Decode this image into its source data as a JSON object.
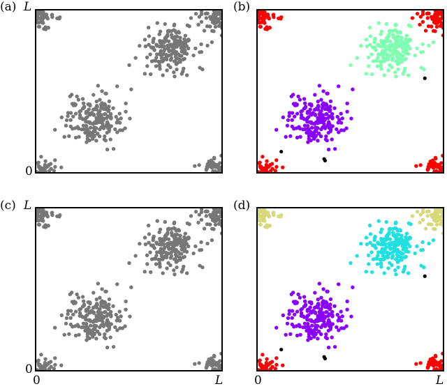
{
  "figure": {
    "panels": [
      {
        "id": "a",
        "label": "(a)"
      },
      {
        "id": "b",
        "label": "(b)"
      },
      {
        "id": "c",
        "label": "(c)"
      },
      {
        "id": "d",
        "label": "(d)"
      }
    ],
    "axis": {
      "max_label": "L",
      "zero_label": "0"
    }
  },
  "chart_data": [
    {
      "type": "scatter",
      "panel": "a",
      "xlim": [
        0,
        1
      ],
      "ylim": [
        0,
        1
      ],
      "xlabel": "",
      "ylabel": "",
      "periodic_boundaries": true,
      "grid": false,
      "clusters": [
        {
          "center": [
            0.31,
            0.33
          ],
          "spread": 0.075,
          "count": 200,
          "color": "#777777"
        },
        {
          "center": [
            0.72,
            0.76
          ],
          "spread": 0.07,
          "count": 200,
          "color": "#777777"
        },
        {
          "center": [
            0.99,
            0.99
          ],
          "spread": 0.055,
          "count": 200,
          "color": "#777777"
        }
      ],
      "outliers": []
    },
    {
      "type": "scatter",
      "panel": "b",
      "xlim": [
        0,
        1
      ],
      "ylim": [
        0,
        1
      ],
      "xlabel": "",
      "ylabel": "",
      "periodic_boundaries": true,
      "grid": false,
      "clusters": [
        {
          "center": [
            0.31,
            0.33
          ],
          "spread": 0.075,
          "count": 200,
          "color": "#8a00ff"
        },
        {
          "center": [
            0.72,
            0.76
          ],
          "spread": 0.07,
          "count": 200,
          "color": "#7fffb0"
        },
        {
          "center": [
            0.99,
            0.99
          ],
          "spread": 0.055,
          "count": 200,
          "color": "#ff0000"
        }
      ],
      "outliers": [
        {
          "x": 0.9,
          "y": 0.58,
          "color": "#000000"
        },
        {
          "x": 0.13,
          "y": 0.13,
          "color": "#000000"
        },
        {
          "x": 0.36,
          "y": 0.085,
          "color": "#000000"
        },
        {
          "x": 0.365,
          "y": 0.075,
          "color": "#000000"
        }
      ]
    },
    {
      "type": "scatter",
      "panel": "c",
      "xlim": [
        0,
        1
      ],
      "ylim": [
        0,
        1
      ],
      "xlabel": "",
      "ylabel": "",
      "periodic_boundaries": true,
      "grid": false,
      "clusters": [
        {
          "center": [
            0.31,
            0.33
          ],
          "spread": 0.075,
          "count": 200,
          "color": "#777777"
        },
        {
          "center": [
            0.72,
            0.76
          ],
          "spread": 0.07,
          "count": 200,
          "color": "#777777"
        },
        {
          "center": [
            0.99,
            0.99
          ],
          "spread": 0.055,
          "count": 200,
          "color": "#777777"
        }
      ],
      "outliers": []
    },
    {
      "type": "scatter",
      "panel": "d",
      "xlim": [
        0,
        1
      ],
      "ylim": [
        0,
        1
      ],
      "xlabel": "",
      "ylabel": "",
      "periodic_boundaries": true,
      "grid": false,
      "clusters": [
        {
          "center": [
            0.31,
            0.33
          ],
          "spread": 0.075,
          "count": 200,
          "color": "#8a00ff"
        },
        {
          "center": [
            0.72,
            0.76
          ],
          "spread": 0.07,
          "count": 200,
          "color": "#22e0e0"
        },
        {
          "center": [
            0.99,
            0.99
          ],
          "spread": 0.055,
          "count": 200,
          "color": "#d6d97a",
          "bottom_right_color": "#ff0000"
        }
      ],
      "outliers": [
        {
          "x": 0.9,
          "y": 0.58,
          "color": "#000000"
        },
        {
          "x": 0.13,
          "y": 0.13,
          "color": "#000000"
        },
        {
          "x": 0.36,
          "y": 0.085,
          "color": "#000000"
        },
        {
          "x": 0.365,
          "y": 0.075,
          "color": "#000000"
        }
      ]
    }
  ]
}
